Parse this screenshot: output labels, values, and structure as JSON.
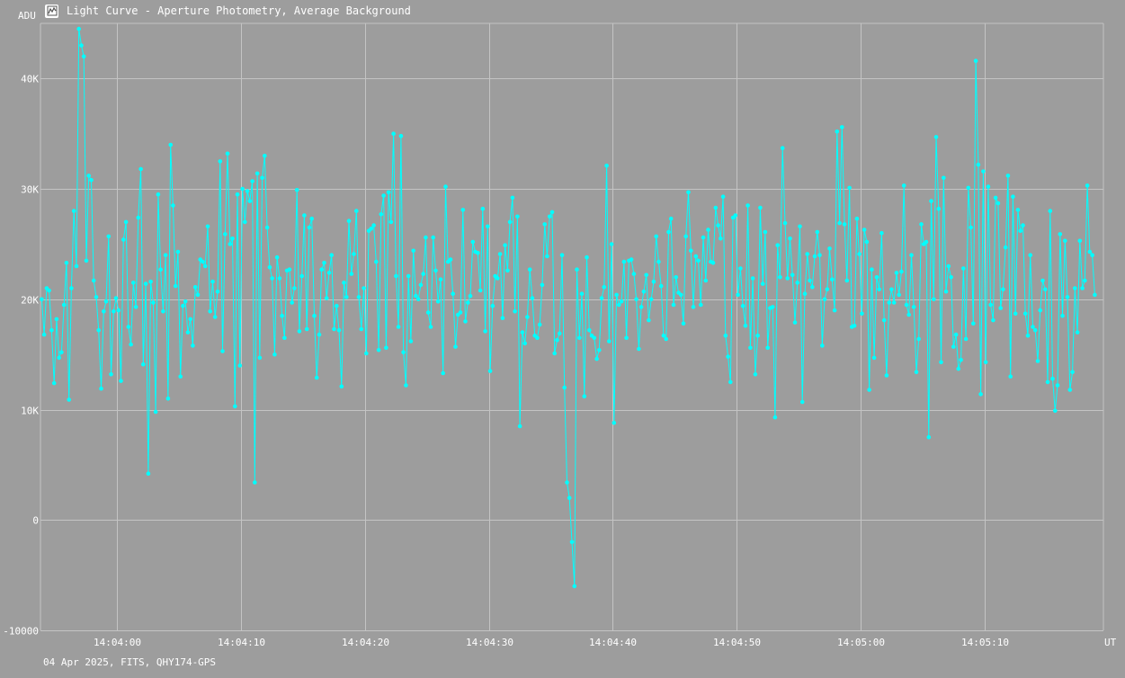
{
  "window": {
    "title": "Light Curve - Aperture Photometry, Average Background",
    "icon": "chart-icon"
  },
  "footer": {
    "text": "04 Apr 2025, FITS, QHY174-GPS"
  },
  "colors": {
    "background": "#9d9d9d",
    "series": "#00ffff",
    "grid": "#c4c4c4",
    "text": "#ffffff"
  },
  "chart_data": {
    "type": "line",
    "ylabel": "ADU",
    "xlabel": "UT",
    "ylim": [
      -10000,
      45000
    ],
    "y_ticks": [
      {
        "value": -10000,
        "label": "-10000"
      },
      {
        "value": 0,
        "label": "0"
      },
      {
        "value": 10000,
        "label": "10K"
      },
      {
        "value": 20000,
        "label": "20K"
      },
      {
        "value": 30000,
        "label": "30K"
      },
      {
        "value": 40000,
        "label": "40K"
      }
    ],
    "xlim_seconds": [
      -6.2,
      79.6
    ],
    "x_ticks": [
      {
        "value": 0,
        "label": "14:04:00"
      },
      {
        "value": 10,
        "label": "14:04:10"
      },
      {
        "value": 20,
        "label": "14:04:20"
      },
      {
        "value": 30,
        "label": "14:04:30"
      },
      {
        "value": 40,
        "label": "14:04:40"
      },
      {
        "value": 50,
        "label": "14:04:50"
      },
      {
        "value": 60,
        "label": "14:05:00"
      },
      {
        "value": 70,
        "label": "14:05:10"
      }
    ],
    "grid": true,
    "series": [
      {
        "dt": 0.2,
        "t0": -6.1,
        "values": [
          20000,
          16800,
          21000,
          20800,
          17200,
          12400,
          18200,
          14700,
          15200,
          19500,
          23300,
          10900,
          21000,
          28000,
          23000,
          44500,
          43000,
          42000,
          23500,
          31200,
          30800,
          21700,
          20200,
          17200,
          11900,
          18900,
          19800,
          25700,
          13200,
          18900,
          20100,
          19000,
          12600,
          25400,
          27000,
          17500,
          15900,
          21500,
          19300,
          27400,
          31800,
          14100,
          21400,
          4200,
          21600,
          19700,
          9800,
          29500,
          22700,
          18900,
          24000,
          11000,
          34000,
          28500,
          21200,
          24300,
          13000,
          19400,
          19800,
          17000,
          18200,
          15800,
          21100,
          20400,
          23600,
          23400,
          23000,
          26600,
          18900,
          21600,
          18400,
          20700,
          32500,
          15300,
          25900,
          33200,
          25000,
          25500,
          10300,
          29500,
          14000,
          30000,
          27000,
          29800,
          28900,
          30700,
          3400,
          31400,
          14700,
          31000,
          33000,
          26500,
          22900,
          21900,
          15000,
          23800,
          21900,
          18500,
          16500,
          22600,
          22700,
          19700,
          21000,
          29900,
          17100,
          22100,
          27600,
          17300,
          26500,
          27300,
          18500,
          12900,
          16800,
          22700,
          23300,
          20100,
          22400,
          24000,
          17300,
          19400,
          17200,
          12100,
          21500,
          20200,
          27100,
          22300,
          24100,
          28000,
          20200,
          17300,
          21000,
          15100,
          26200,
          26400,
          26700,
          23400,
          15400,
          27700,
          29400,
          15600,
          29700,
          27000,
          35000,
          22100,
          17500,
          34800,
          15200,
          12200,
          22100,
          16200,
          24400,
          20300,
          20000,
          21300,
          22300,
          25600,
          18800,
          17500,
          25600,
          22600,
          19800,
          21800,
          13300,
          30200,
          23400,
          23600,
          20500,
          15700,
          18600,
          18800,
          28100,
          18000,
          19700,
          20300,
          25200,
          24300,
          24200,
          20800,
          28200,
          17100,
          26600,
          13500,
          19400,
          22100,
          21900,
          24100,
          18300,
          24900,
          22600,
          27000,
          29200,
          18900,
          27500,
          8500,
          17000,
          16000,
          18400,
          22700,
          20100,
          16700,
          16500,
          17700,
          21300,
          26800,
          23900,
          27500,
          27900,
          15100,
          16300,
          16900,
          24000,
          12000,
          3400,
          2000,
          -2000,
          -6000,
          22700,
          16500,
          20500,
          11200,
          23800,
          17200,
          16700,
          16500,
          14600,
          15400,
          20100,
          21100,
          32100,
          16200,
          25000,
          8800,
          20400,
          19500,
          19800,
          23400,
          16500,
          23500,
          23600,
          22300,
          20000,
          15500,
          19300,
          20700,
          22200,
          18100,
          20000,
          21600,
          25700,
          23400,
          21200,
          16700,
          16400,
          26100,
          27300,
          19500,
          22000,
          20600,
          20400,
          17800,
          25700,
          29700,
          24400,
          19300,
          23900,
          23500,
          19500,
          25600,
          21700,
          26300,
          23400,
          23300,
          28300,
          26700,
          25500,
          29300,
          16700,
          14800,
          12500,
          27400,
          27600,
          20400,
          22800,
          19400,
          17600,
          28500,
          15600,
          21900,
          13200,
          16700,
          28300,
          21400,
          26100,
          15600,
          19200,
          19300,
          9300,
          24900,
          22000,
          33700,
          26900,
          21900,
          25500,
          22200,
          17900,
          21500,
          26600,
          10700,
          20500,
          24100,
          21700,
          21100,
          23900,
          26100,
          24000,
          15800,
          20000,
          20900,
          24600,
          21800,
          19000,
          35200,
          26900,
          35600,
          26800,
          21700,
          30100,
          17500,
          17600,
          27300,
          24100,
          18700,
          26300,
          25200,
          11800,
          22700,
          14700,
          22000,
          20900,
          26000,
          18100,
          13100,
          19700,
          20900,
          19700,
          22400,
          20400,
          22500,
          30300,
          19500,
          18600,
          24000,
          19300,
          13400,
          16400,
          26800,
          25000,
          25200,
          7500,
          28900,
          20000,
          34700,
          28200,
          14300,
          31000,
          20700,
          23000,
          22000,
          15700,
          16800,
          13700,
          14500,
          22800,
          16400,
          30100,
          26500,
          17800,
          41600,
          32200,
          11400,
          31600,
          14300,
          30200,
          19500,
          18100,
          29200,
          28700,
          19200,
          20900,
          24700,
          31200,
          13000,
          29300,
          18700,
          28100,
          26200,
          26700,
          18700,
          16700,
          24000,
          17500,
          17200,
          14400,
          19000,
          21700,
          20900,
          12500,
          28000,
          12800,
          9900,
          12200,
          25900,
          18500,
          25300,
          20200,
          11800,
          13400,
          21000,
          17000,
          25300,
          21000,
          21700,
          30300,
          24300,
          24000,
          20400
        ]
      }
    ]
  }
}
